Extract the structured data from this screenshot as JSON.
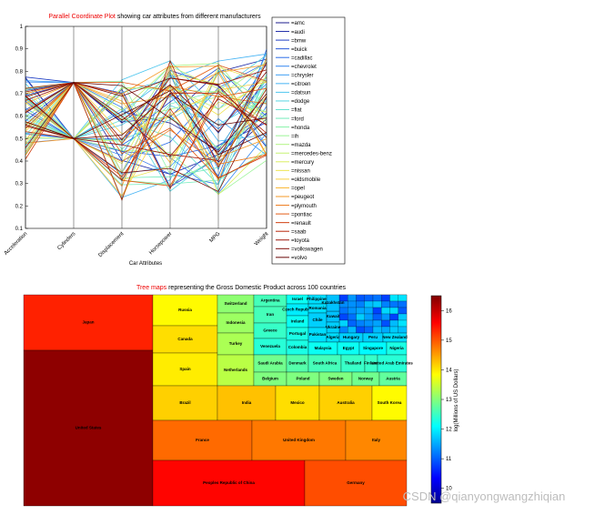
{
  "chart_data": [
    {
      "type": "parallel-coordinates",
      "title": {
        "highlight": "Parallel Coordinate Plot",
        "rest": " showing car attributes from different manufacturers"
      },
      "xlabel": "Car Attributes",
      "axes": [
        "Acceleration",
        "Cylinders",
        "Displacement",
        "Horsepower",
        "MPG",
        "Weight"
      ],
      "ylim": [
        0.1,
        1
      ],
      "yticks": [
        "0.1",
        "0.2",
        "0.3",
        "0.4",
        "0.5",
        "0.6",
        "0.7",
        "0.8",
        "0.9",
        "1"
      ],
      "legend": [
        {
          "label": "=amc",
          "color": "#1c1c8c"
        },
        {
          "label": "=audi",
          "color": "#1e2aa8"
        },
        {
          "label": "=bmw",
          "color": "#1f3fc4"
        },
        {
          "label": "=buick",
          "color": "#2455d8"
        },
        {
          "label": "=cadillac",
          "color": "#2a6de8"
        },
        {
          "label": "=chevrolet",
          "color": "#3185f0"
        },
        {
          "label": "=chrysler",
          "color": "#3a9cf4"
        },
        {
          "label": "=citroen",
          "color": "#44b3f4"
        },
        {
          "label": "=datsun",
          "color": "#4ec6ee"
        },
        {
          "label": "=dodge",
          "color": "#5ad6e2"
        },
        {
          "label": "=fiat",
          "color": "#66e2d0"
        },
        {
          "label": "=ford",
          "color": "#74ecbc"
        },
        {
          "label": "=honda",
          "color": "#86f2a8"
        },
        {
          "label": "=ih",
          "color": "#9af496"
        },
        {
          "label": "=mazda",
          "color": "#b0f484"
        },
        {
          "label": "=mercedes-benz",
          "color": "#c6f272"
        },
        {
          "label": "=mercury",
          "color": "#dcee60"
        },
        {
          "label": "=nissan",
          "color": "#eee450"
        },
        {
          "label": "=oldsmobile",
          "color": "#f8d040"
        },
        {
          "label": "=opel",
          "color": "#fab632"
        },
        {
          "label": "=peugeot",
          "color": "#f69a26"
        },
        {
          "label": "=plymouth",
          "color": "#ee7c1c"
        },
        {
          "label": "=pontiac",
          "color": "#e25c14"
        },
        {
          "label": "=renault",
          "color": "#d03e0e"
        },
        {
          "label": "=saab",
          "color": "#b8260a"
        },
        {
          "label": "=toyota",
          "color": "#9c1408"
        },
        {
          "label": "=volkswagen",
          "color": "#800a06"
        },
        {
          "label": "=volvo",
          "color": "#660404"
        }
      ]
    },
    {
      "type": "treemap",
      "title": {
        "highlight": "Tree maps",
        "rest": "  representing the Gross Domestic Product across 100 countries"
      },
      "colorbar": {
        "label": "log(Millions of US Dollars)",
        "range": [
          9.5,
          16.5
        ],
        "ticks": [
          "10",
          "11",
          "12",
          "13",
          "14",
          "15",
          "16"
        ]
      },
      "nodes": [
        {
          "label": "Japan",
          "value": 15.4
        },
        {
          "label": "United States",
          "value": 16.4
        },
        {
          "label": "Russia",
          "value": 13.9
        },
        {
          "label": "Canada",
          "value": 14.1
        },
        {
          "label": "Spain",
          "value": 14.0
        },
        {
          "label": "Brazil",
          "value": 14.2
        },
        {
          "label": "Switzerland",
          "value": 13.1
        },
        {
          "label": "Indonesia",
          "value": 13.2
        },
        {
          "label": "Turkey",
          "value": 13.3
        },
        {
          "label": "Netherlands",
          "value": 13.4
        },
        {
          "label": "Argentina",
          "value": 12.6
        },
        {
          "label": "Iran",
          "value": 12.6
        },
        {
          "label": "Greece",
          "value": 12.5
        },
        {
          "label": "Venezuela",
          "value": 12.4
        },
        {
          "label": "Israel",
          "value": 12.2
        },
        {
          "label": "Czech Republic",
          "value": 12.0
        },
        {
          "label": "Ireland",
          "value": 12.2
        },
        {
          "label": "Portugal",
          "value": 12.3
        },
        {
          "label": "Colombia",
          "value": 12.3
        },
        {
          "label": "Philippines",
          "value": 11.9
        },
        {
          "label": "Romania",
          "value": 11.9
        },
        {
          "label": "Chile",
          "value": 11.8
        },
        {
          "label": "Kuwait",
          "value": 11.7
        },
        {
          "label": "Kazakhstan",
          "value": 11.7
        },
        {
          "label": "Ukraine",
          "value": 11.8
        },
        {
          "label": "Pakistan",
          "value": 11.9
        },
        {
          "label": "Algeria",
          "value": 11.9
        },
        {
          "label": "Hungary",
          "value": 11.8
        },
        {
          "label": "Peru",
          "value": 11.8
        },
        {
          "label": "New Zealand",
          "value": 11.9
        },
        {
          "label": "Malaysia",
          "value": 12.2
        },
        {
          "label": "Egypt",
          "value": 12.2
        },
        {
          "label": "Singapore",
          "value": 12.1
        },
        {
          "label": "Nigeria",
          "value": 12.3
        },
        {
          "label": "Saudi Arabia",
          "value": 12.9
        },
        {
          "label": "Denmark",
          "value": 12.7
        },
        {
          "label": "South Africa",
          "value": 12.6
        },
        {
          "label": "Thailand",
          "value": 12.5
        },
        {
          "label": "Finland",
          "value": 12.5
        },
        {
          "label": "United Arab Emirates",
          "value": 12.4
        },
        {
          "label": "Belgium",
          "value": 13.0
        },
        {
          "label": "Poland",
          "value": 13.0
        },
        {
          "label": "Sweden",
          "value": 13.0
        },
        {
          "label": "Norway",
          "value": 12.9
        },
        {
          "label": "Austria",
          "value": 12.8
        },
        {
          "label": "India",
          "value": 14.3
        },
        {
          "label": "Mexico",
          "value": 14.1
        },
        {
          "label": "Australia",
          "value": 14.2
        },
        {
          "label": "South Korea",
          "value": 13.9
        },
        {
          "label": "France",
          "value": 14.9
        },
        {
          "label": "United Kingdom",
          "value": 14.8
        },
        {
          "label": "Italy",
          "value": 14.7
        },
        {
          "label": "Peoples Republic of China",
          "value": 15.6
        },
        {
          "label": "Germany",
          "value": 15.1
        }
      ]
    }
  ],
  "watermark": "CSDN @qianyongwangzhiqian"
}
